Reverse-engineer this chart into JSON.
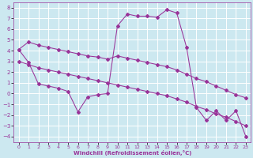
{
  "background_color": "#cce8f0",
  "grid_color": "#ffffff",
  "line_color": "#993399",
  "xlabel": "Windchill (Refroidissement éolien,°C)",
  "xlim": [
    -0.5,
    23.5
  ],
  "ylim": [
    -4.5,
    8.5
  ],
  "yticks": [
    -4,
    -3,
    -2,
    -1,
    0,
    1,
    2,
    3,
    4,
    5,
    6,
    7,
    8
  ],
  "xticks": [
    0,
    1,
    2,
    3,
    4,
    5,
    6,
    7,
    8,
    9,
    10,
    11,
    12,
    13,
    14,
    15,
    16,
    17,
    18,
    19,
    20,
    21,
    22,
    23
  ],
  "line1_x": [
    0,
    1,
    2,
    3,
    4,
    5,
    6,
    7,
    8,
    9,
    10,
    11,
    12,
    13,
    14,
    15,
    16,
    17,
    18,
    19,
    20,
    21,
    22,
    23
  ],
  "line1_y": [
    4.1,
    4.8,
    4.5,
    4.3,
    4.1,
    3.9,
    3.7,
    3.5,
    3.4,
    3.2,
    3.5,
    3.3,
    3.1,
    2.9,
    2.7,
    2.5,
    2.2,
    1.8,
    1.4,
    1.1,
    0.7,
    0.3,
    -0.1,
    -0.4
  ],
  "line2_x": [
    0,
    1,
    2,
    3,
    4,
    5,
    6,
    7,
    8,
    9,
    10,
    11,
    12,
    13,
    14,
    15,
    16,
    17,
    18,
    19,
    20,
    21,
    22,
    23
  ],
  "line2_y": [
    3.0,
    2.7,
    2.4,
    2.2,
    2.0,
    1.8,
    1.6,
    1.4,
    1.2,
    1.0,
    0.8,
    0.6,
    0.4,
    0.2,
    0.0,
    -0.2,
    -0.5,
    -0.8,
    -1.2,
    -1.5,
    -1.9,
    -2.2,
    -2.6,
    -3.0
  ],
  "line3_x": [
    0,
    1,
    2,
    3,
    4,
    5,
    6,
    7,
    8,
    9,
    10,
    11,
    12,
    13,
    14,
    15,
    16,
    17,
    18,
    19,
    20,
    21,
    22,
    23
  ],
  "line3_y": [
    4.1,
    2.9,
    0.9,
    0.7,
    0.5,
    0.2,
    -1.7,
    -0.3,
    -0.1,
    0.0,
    6.3,
    7.4,
    7.2,
    7.2,
    7.1,
    7.8,
    7.5,
    4.3,
    -1.3,
    -2.5,
    -1.6,
    -2.5,
    -1.6,
    -4.0
  ]
}
